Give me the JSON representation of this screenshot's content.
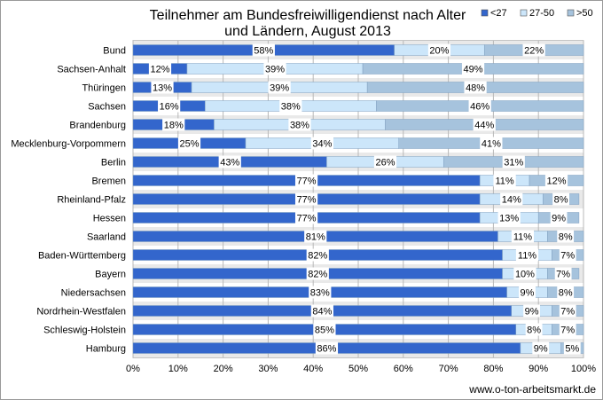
{
  "chart_data": {
    "type": "bar",
    "orientation": "horizontal",
    "stacked": "percent",
    "title_line1": "Teilnehmer am Bundesfreiwilligendienst nach Alter",
    "title_line2": "und Ländern, August 2013",
    "source": "www.o-ton-arbeitsmarkt.de",
    "categories": [
      "Bund",
      "Sachsen-Anhalt",
      "Thüringen",
      "Sachsen",
      "Brandenburg",
      "Mecklenburg-Vorpommern",
      "Berlin",
      "Bremen",
      "Rheinland-Pfalz",
      "Hessen",
      "Saarland",
      "Baden-Württemberg",
      "Bayern",
      "Niedersachsen",
      "Nordrhein-Westfalen",
      "Schleswig-Holstein",
      "Hamburg"
    ],
    "series": [
      {
        "name": "<27",
        "color": "#3366cc",
        "values": [
          58,
          12,
          13,
          16,
          18,
          25,
          43,
          77,
          77,
          77,
          81,
          82,
          82,
          83,
          84,
          85,
          86
        ]
      },
      {
        "name": "27-50",
        "color": "#cce6fa",
        "values": [
          20,
          39,
          39,
          38,
          38,
          34,
          26,
          11,
          14,
          13,
          11,
          11,
          10,
          9,
          9,
          8,
          9
        ]
      },
      {
        "name": ">50",
        "color": "#a6c3dd",
        "values": [
          22,
          49,
          48,
          46,
          44,
          41,
          31,
          12,
          8,
          9,
          8,
          7,
          7,
          8,
          7,
          7,
          5
        ]
      }
    ],
    "xlim": [
      0,
      100
    ],
    "xticks": [
      "0%",
      "10%",
      "20%",
      "30%",
      "40%",
      "50%",
      "60%",
      "70%",
      "80%",
      "90%",
      "100%"
    ],
    "legend_position": "top-right",
    "grid": true
  }
}
